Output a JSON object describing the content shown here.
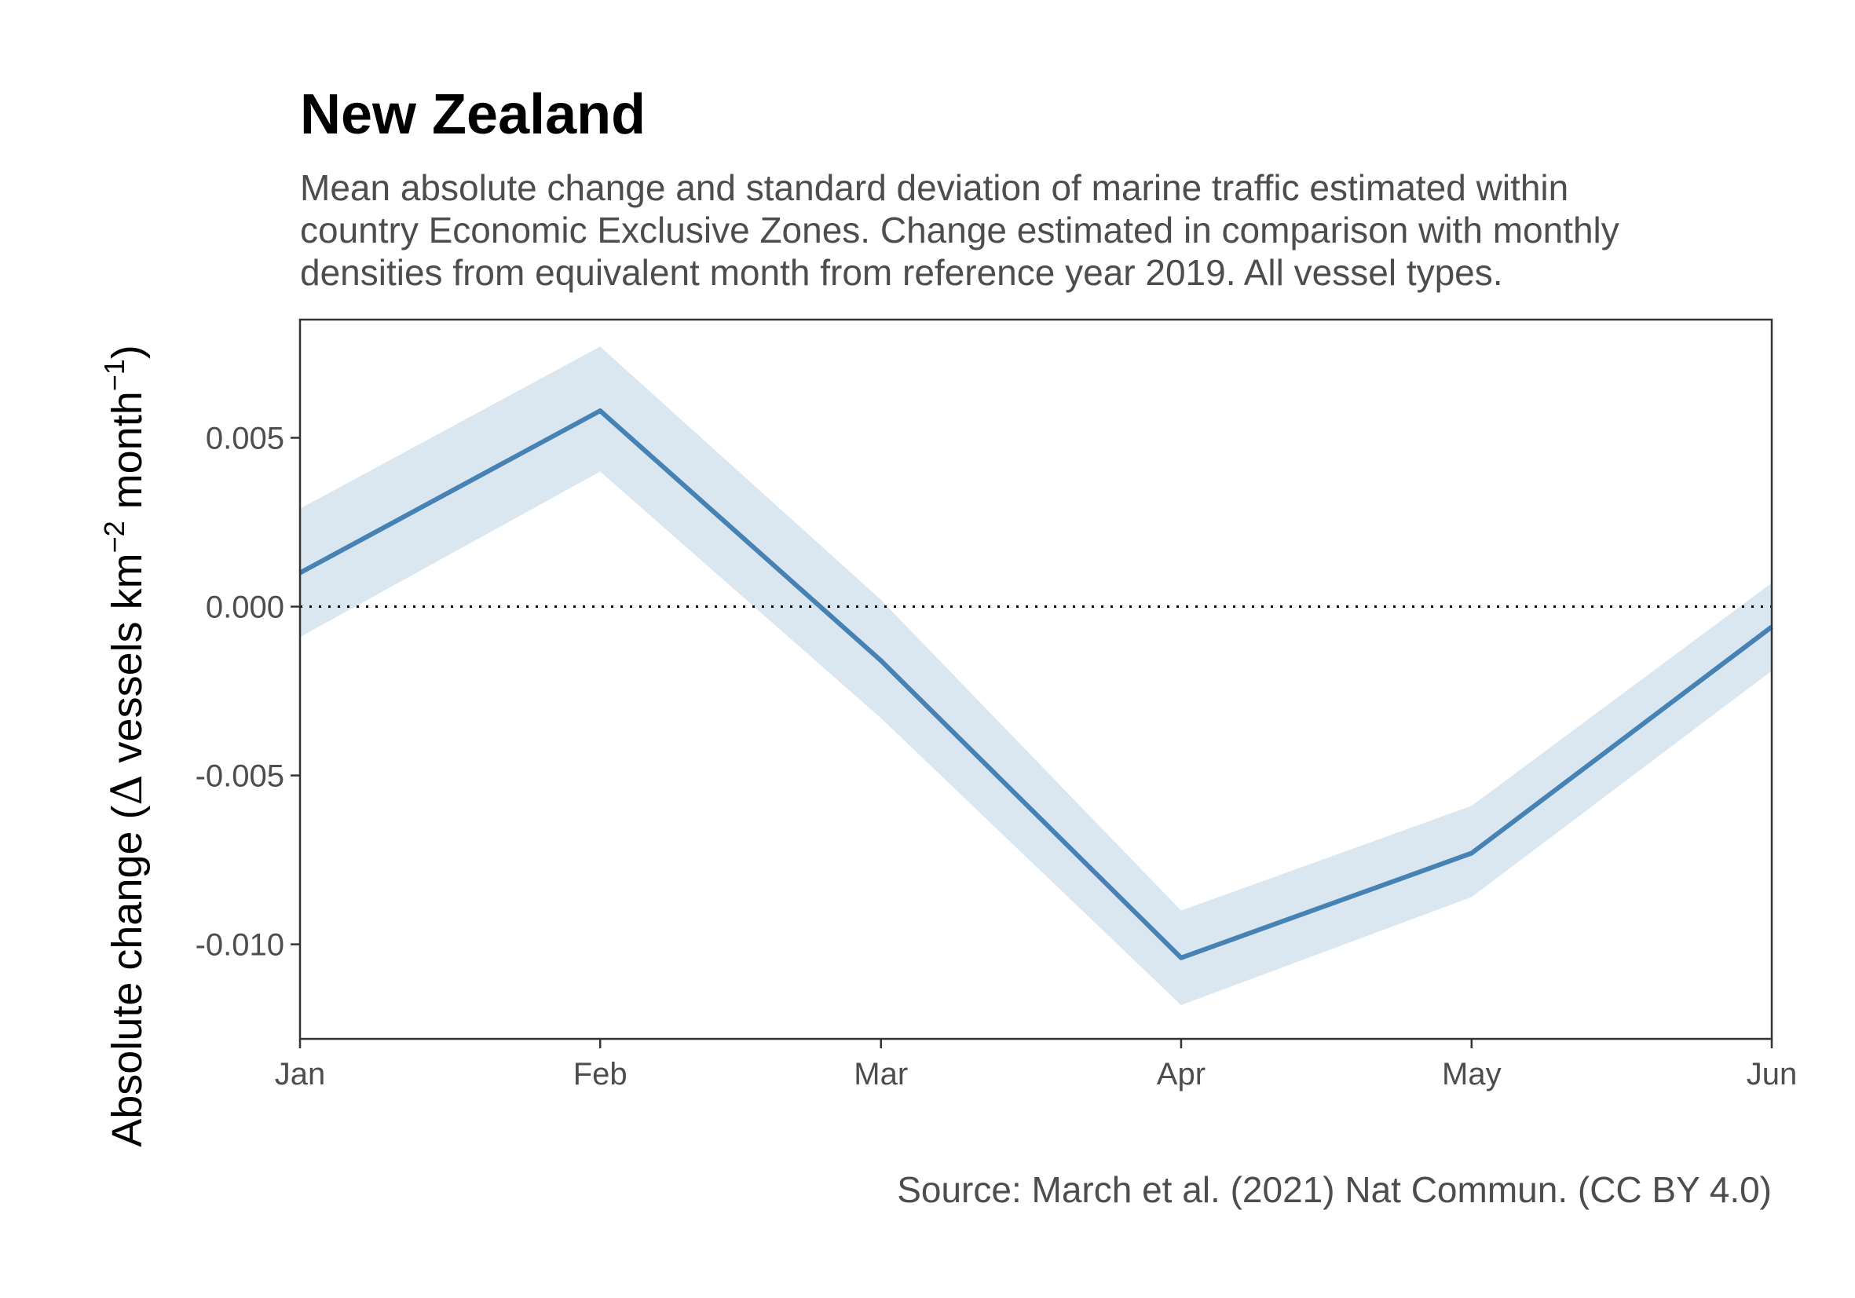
{
  "chart_data": {
    "type": "line",
    "title": "New Zealand",
    "subtitle": [
      "Mean absolute change and standard deviation of marine traffic estimated within",
      "country Economic Exclusive Zones. Change estimated in comparison with monthly",
      "densities from equivalent month from reference year 2019. All vessel types."
    ],
    "ylabel": {
      "prefix": "Absolute change (",
      "delta": "Δ",
      "text1": " vessels km",
      "sup1": "−2",
      "text2": " month",
      "sup2": "−1",
      "suffix": ")"
    },
    "xlabel": "",
    "caption": "Source: March et al. (2021) Nat Commun. (CC BY 4.0)",
    "categories": [
      "Jan",
      "Feb",
      "Mar",
      "Apr",
      "May",
      "Jun"
    ],
    "x_dates": [
      "2020-01-01",
      "2020-02-01",
      "2020-03-01",
      "2020-04-01",
      "2020-05-01",
      "2020-06-01"
    ],
    "series": [
      {
        "values": [
          0.001,
          0.0058,
          -0.0016,
          -0.0104,
          -0.0073,
          -0.0006
        ],
        "sd_upper": [
          0.0029,
          0.0077,
          0.0002,
          -0.009,
          -0.0059,
          0.0007
        ],
        "sd_lower": [
          -0.0009,
          0.004,
          -0.0033,
          -0.0118,
          -0.0086,
          -0.0019
        ],
        "color": "#4682b4",
        "band_color": "#dae6f0"
      }
    ],
    "yticks": [
      "0.005",
      "0.000",
      "-0.005",
      "-0.010"
    ],
    "ytick_values": [
      0.005,
      0.0,
      -0.005,
      -0.01
    ],
    "ylim": [
      -0.0128,
      0.0085
    ],
    "reference_line": {
      "y": 0,
      "style": "dotted"
    },
    "grid": false
  }
}
